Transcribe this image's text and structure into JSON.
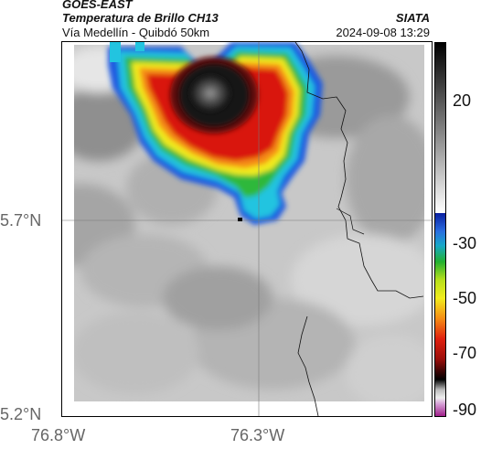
{
  "header": {
    "satellite": "GOES-EAST",
    "product": "Temperatura de Brillo CH13",
    "route": "Vía Medellín - Quibdó 50km",
    "source": "SIATA",
    "datetime": "2024-09-08 13:29"
  },
  "axes": {
    "lat_ticks": [
      "5.7°N",
      "5.2°N"
    ],
    "lon_ticks": [
      "76.8°W",
      "76.3°W"
    ]
  },
  "colorbar": {
    "ticks": [
      "20",
      "-30",
      "-50",
      "-70",
      "-90"
    ]
  }
}
